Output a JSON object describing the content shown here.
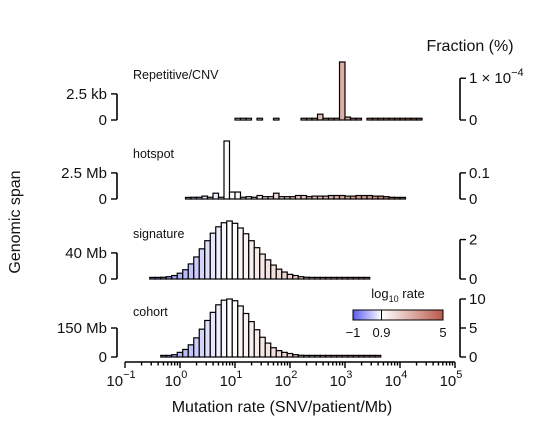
{
  "chart_data": {
    "type": "bar",
    "x_axis": {
      "label": "Mutation rate (SNV/patient/Mb)",
      "scale": "log",
      "range_log10": [
        -1,
        5
      ],
      "ticks": [
        {
          "base": "10",
          "exp": "−1"
        },
        {
          "base": "10",
          "exp": "0"
        },
        {
          "base": "10",
          "exp": "1"
        },
        {
          "base": "10",
          "exp": "2"
        },
        {
          "base": "10",
          "exp": "3"
        },
        {
          "base": "10",
          "exp": "4"
        },
        {
          "base": "10",
          "exp": "5"
        }
      ]
    },
    "left_axis_title": "Genomic span",
    "right_axis_title": "Fraction (%)",
    "colorbar": {
      "title_prefix": "log",
      "title_sub": "10",
      "title_suffix": " rate",
      "range_log10": [
        -1,
        5
      ],
      "center": 0.9,
      "colors": {
        "low": "#5c5cf0",
        "mid": "#ffffff",
        "high": "#b85a4a"
      },
      "tick_labels": [
        "−1",
        "0.9",
        "5"
      ]
    },
    "panels": [
      {
        "name": "Repetitive/CNV",
        "left_ticks": [
          "0",
          "2.5 kb"
        ],
        "left_tick_values": [
          0,
          0.45
        ],
        "right_ticks": [
          {
            "text": "0"
          },
          {
            "text": "1 × 10",
            "sup": "−4"
          }
        ],
        "right_tick_values": [
          0,
          0.72
        ],
        "bins_log10_start": 1.0,
        "bin_width_log10": 0.1,
        "values": [
          0.03,
          0.03,
          0.03,
          0,
          0.03,
          0,
          0,
          0.03,
          0,
          0,
          0,
          0,
          0.03,
          0.03,
          0.03,
          0.1,
          0.03,
          0.03,
          0.03,
          1.0,
          0.05,
          0.03,
          0.03,
          0,
          0.03,
          0.03,
          0.03,
          0.03,
          0.03,
          0.03,
          0.03,
          0.03,
          0.03,
          0.03
        ]
      },
      {
        "name": "hotspot",
        "left_ticks": [
          "0",
          "2.5 Mb"
        ],
        "left_tick_values": [
          0,
          0.45
        ],
        "right_ticks": [
          {
            "text": "0"
          },
          {
            "text": "0.1"
          }
        ],
        "right_tick_values": [
          0,
          0.45
        ],
        "bins_log10_start": 0.1,
        "bin_width_log10": 0.1,
        "values": [
          0.02,
          0.03,
          0.03,
          0.05,
          0.03,
          0.1,
          0.03,
          1.0,
          0.12,
          0.12,
          0.03,
          0.04,
          0.03,
          0.06,
          0.04,
          0.04,
          0.1,
          0.04,
          0.04,
          0.04,
          0.06,
          0.06,
          0.04,
          0.05,
          0.05,
          0.05,
          0.06,
          0.06,
          0.06,
          0.05,
          0.05,
          0.06,
          0.06,
          0.06,
          0.05,
          0.05,
          0.04,
          0.03,
          0.02,
          0.02
        ]
      },
      {
        "name": "signature",
        "left_ticks": [
          "0",
          "40 Mb"
        ],
        "left_tick_values": [
          0,
          0.45
        ],
        "right_ticks": [
          {
            "text": "0"
          },
          {
            "text": "2"
          }
        ],
        "right_tick_values": [
          0,
          0.68
        ],
        "bins_log10_start": -0.55,
        "bin_width_log10": 0.1,
        "values": [
          0.01,
          0.02,
          0.03,
          0.04,
          0.06,
          0.1,
          0.16,
          0.26,
          0.38,
          0.52,
          0.66,
          0.79,
          0.9,
          0.97,
          1.0,
          0.96,
          0.88,
          0.78,
          0.66,
          0.54,
          0.43,
          0.33,
          0.24,
          0.17,
          0.12,
          0.08,
          0.06,
          0.04,
          0.03,
          0.02,
          0.01,
          0.01,
          0.01,
          0.005,
          0.005,
          0.005,
          0.005,
          0.005,
          0.005,
          0.005
        ]
      },
      {
        "name": "cohort",
        "left_ticks": [
          "0",
          "150 Mb"
        ],
        "left_tick_values": [
          0,
          0.5
        ],
        "right_ticks": [
          {
            "text": "0"
          },
          {
            "text": "5"
          },
          {
            "text": "10"
          }
        ],
        "right_tick_values": [
          0,
          0.5,
          1.0
        ],
        "bins_log10_start": -0.35,
        "bin_width_log10": 0.1,
        "values": [
          0.01,
          0.02,
          0.04,
          0.08,
          0.13,
          0.21,
          0.33,
          0.48,
          0.63,
          0.77,
          0.9,
          0.98,
          1.0,
          0.97,
          0.88,
          0.75,
          0.61,
          0.47,
          0.34,
          0.24,
          0.16,
          0.11,
          0.08,
          0.06,
          0.04,
          0.03,
          0.02,
          0.02,
          0.01,
          0.01,
          0.01,
          0.01,
          0.005,
          0.005,
          0.005,
          0.005,
          0.005,
          0.005,
          0.005,
          0.005
        ]
      }
    ]
  }
}
